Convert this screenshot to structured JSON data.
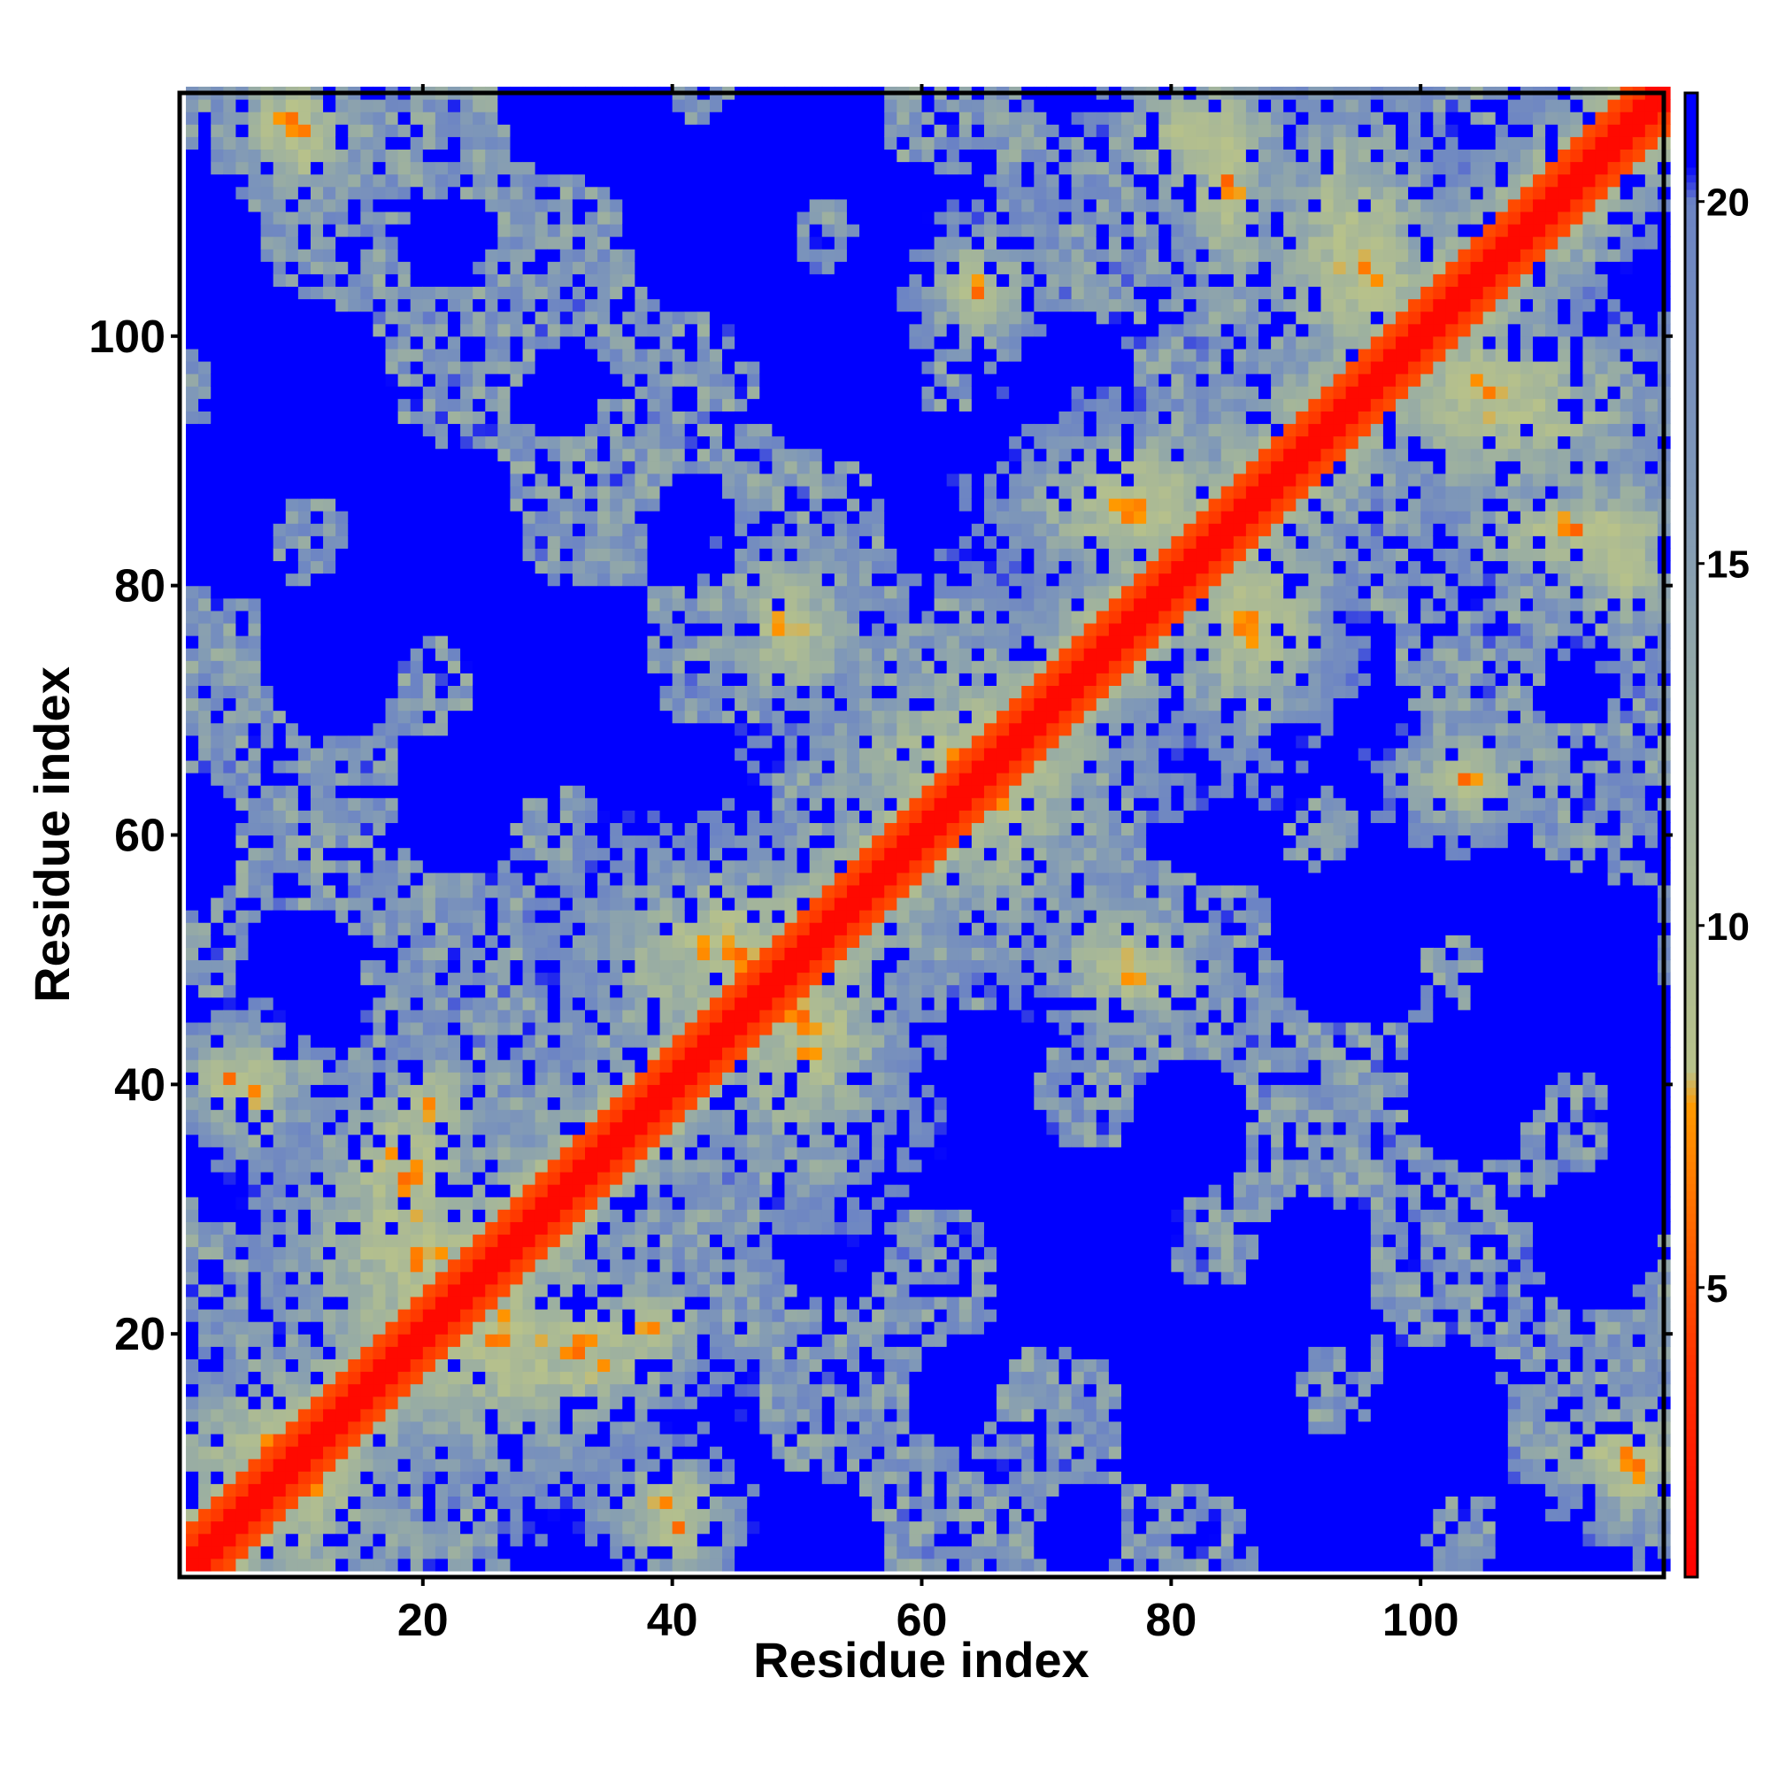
{
  "chart_data": {
    "type": "heatmap",
    "title": "",
    "xlabel": "Residue index",
    "ylabel": "Residue index",
    "n_residues": 119,
    "xlim": [
      1,
      119
    ],
    "ylim": [
      1,
      119
    ],
    "x_ticks": [
      20,
      40,
      60,
      80,
      100
    ],
    "y_ticks": [
      20,
      40,
      60,
      80,
      100
    ],
    "x_tick_labels": [
      "20",
      "40",
      "60",
      "80",
      "100"
    ],
    "y_tick_labels": [
      "20",
      "40",
      "60",
      "80",
      "100"
    ],
    "colorbar": {
      "range": [
        1,
        21.5
      ],
      "ticks": [
        5,
        10,
        15,
        20
      ],
      "tick_labels": [
        "5",
        "10",
        "15",
        "20"
      ],
      "colors": [
        {
          "value": 1,
          "color": "#ff0000"
        },
        {
          "value": 4,
          "color": "#ff3300"
        },
        {
          "value": 7.5,
          "color": "#ff9900"
        },
        {
          "value": 8,
          "color": "#b8c28a"
        },
        {
          "value": 12,
          "color": "#9fb29e"
        },
        {
          "value": 16,
          "color": "#7f98b8"
        },
        {
          "value": 20,
          "color": "#6c84c4"
        },
        {
          "value": 20.5,
          "color": "#0000ff"
        }
      ]
    },
    "description": "Symmetric residue-residue distance matrix (Angstrom); red diagonal band, orange contacts, grey-green intermediate, blue beyond cutoff",
    "contact_blocks": [
      {
        "i": [
          8,
          14
        ],
        "j": [
          1,
          14
        ],
        "level": "contact"
      },
      {
        "i": [
          12,
          26
        ],
        "j": [
          18,
          34
        ],
        "level": "contact"
      },
      {
        "i": [
          27,
          38
        ],
        "j": [
          14,
          22
        ],
        "level": "contact"
      },
      {
        "i": [
          45,
          55
        ],
        "j": [
          36,
          52
        ],
        "level": "contact"
      },
      {
        "i": [
          46,
          54
        ],
        "j": [
          40,
          55
        ],
        "level": "contact"
      },
      {
        "i": [
          60,
          70
        ],
        "j": [
          56,
          72
        ],
        "level": "contact"
      },
      {
        "i": [
          72,
          80
        ],
        "j": [
          46,
          52
        ],
        "level": "contact"
      },
      {
        "i": [
          83,
          88
        ],
        "j": [
          70,
          82
        ],
        "level": "contact"
      },
      {
        "i": [
          72,
          82
        ],
        "j": [
          82,
          90
        ],
        "level": "contact"
      },
      {
        "i": [
          90,
          98
        ],
        "j": [
          100,
          115
        ],
        "level": "contact"
      },
      {
        "i": [
          100,
          108
        ],
        "j": [
          90,
          100
        ],
        "level": "contact"
      },
      {
        "i": [
          112,
          119
        ],
        "j": [
          78,
          86
        ],
        "level": "contact"
      },
      {
        "i": [
          114,
          119
        ],
        "j": [
          6,
          12
        ],
        "level": "contact"
      },
      {
        "i": [
          4,
          8
        ],
        "j": [
          36,
          42
        ],
        "level": "contact"
      },
      {
        "i": [
          8,
          12
        ],
        "j": [
          112,
          119
        ],
        "level": "contact"
      },
      {
        "i": [
          62,
          66
        ],
        "j": [
          100,
          106
        ],
        "level": "contact"
      },
      {
        "i": [
          102,
          105
        ],
        "j": [
          62,
          66
        ],
        "level": "contact"
      },
      {
        "i": [
          38,
          42
        ],
        "j": [
          2,
          6
        ],
        "level": "contact"
      },
      {
        "i": [
          18,
          22
        ],
        "j": [
          36,
          40
        ],
        "level": "contact"
      },
      {
        "i": [
          82,
          86
        ],
        "j": [
          106,
          118
        ],
        "level": "contact"
      }
    ]
  }
}
